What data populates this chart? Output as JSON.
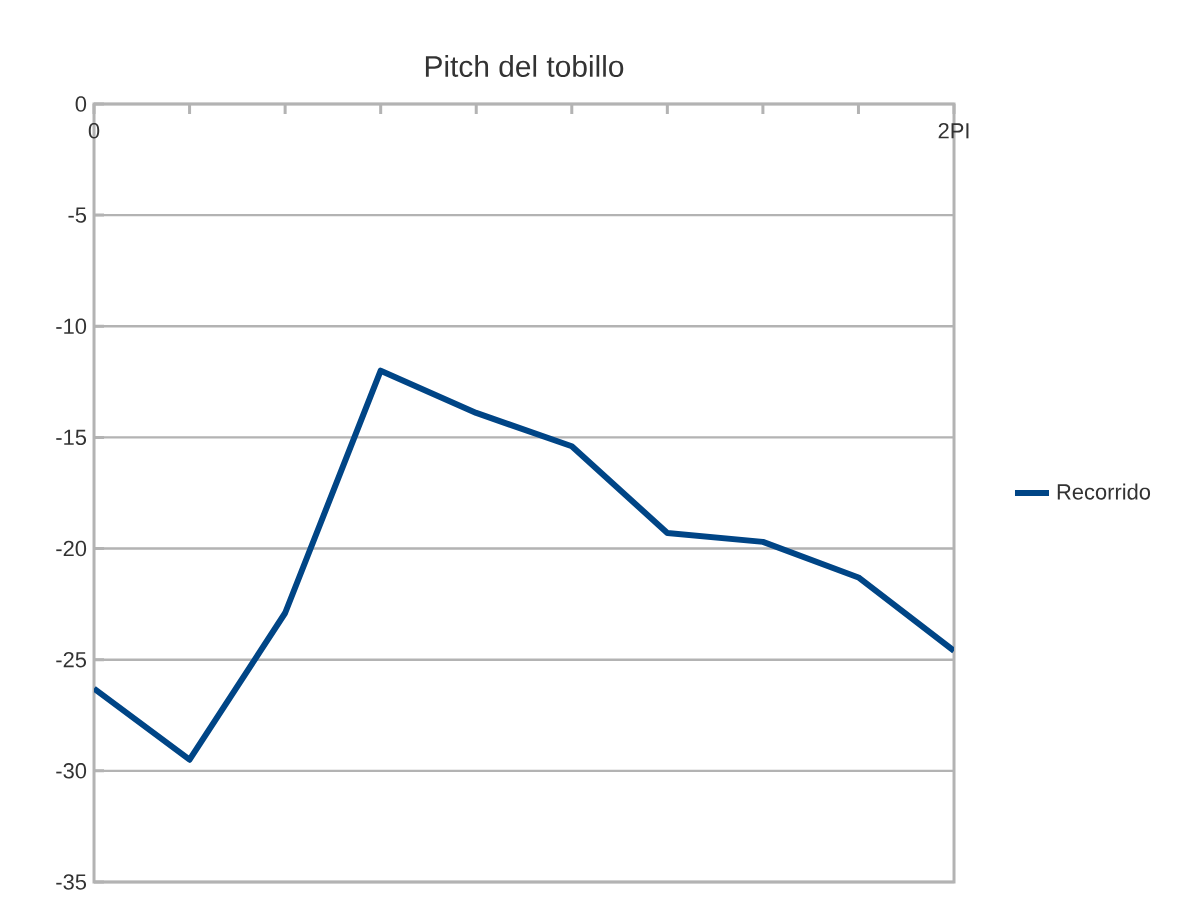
{
  "chart_data": {
    "type": "line",
    "title": "Pitch del tobillo",
    "categories": [
      "0",
      null,
      null,
      null,
      null,
      null,
      null,
      null,
      null,
      "2PI"
    ],
    "series": [
      {
        "name": "Recorrido",
        "color": "#004586",
        "values": [
          -26.3,
          -29.5,
          -22.9,
          -12.0,
          -13.9,
          -15.4,
          -19.3,
          -19.7,
          -21.3,
          -24.6
        ]
      }
    ],
    "ylim": [
      -35,
      0
    ],
    "yticks": [
      0,
      -5,
      -10,
      -15,
      -20,
      -25,
      -30,
      -35
    ],
    "grid": "y",
    "legend": "right",
    "marker": "none",
    "line_style": "solid"
  }
}
